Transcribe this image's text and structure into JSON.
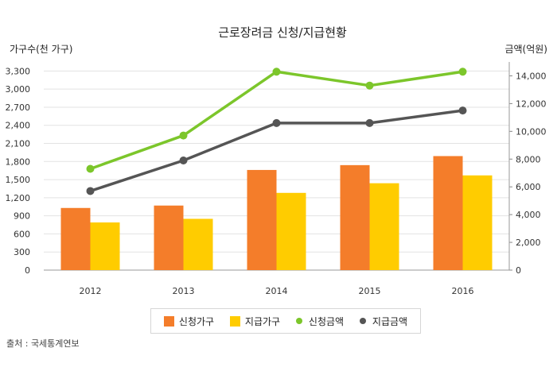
{
  "chart_data": {
    "type": "bar",
    "title": "근로장려금 신청/지급현황",
    "ylabel_left": "가구수(천 가구)",
    "ylabel_right": "금액(억원)",
    "categories": [
      "2012",
      "2013",
      "2014",
      "2015",
      "2016"
    ],
    "ylim_left": [
      0,
      3450
    ],
    "ylim_right": [
      0,
      15000
    ],
    "yticks_left": [
      "0",
      "300",
      "600",
      "900",
      "1,200",
      "1,500",
      "1,800",
      "2,100",
      "2,400",
      "2,700",
      "3,000",
      "3,300"
    ],
    "yticks_right": [
      "0",
      "2,000",
      "4,000",
      "6,000",
      "8,000",
      "10,000",
      "12,000",
      "14,000"
    ],
    "series": [
      {
        "name": "신청가구",
        "kind": "bar",
        "axis": "left",
        "color": "#f47d2a",
        "values": [
          1030,
          1070,
          1660,
          1740,
          1890
        ]
      },
      {
        "name": "지급가구",
        "kind": "bar",
        "axis": "left",
        "color": "#ffcc00",
        "values": [
          790,
          850,
          1280,
          1440,
          1570
        ]
      },
      {
        "name": "신청금액",
        "kind": "line",
        "axis": "right",
        "color": "#7cc62b",
        "values": [
          7300,
          9700,
          14300,
          13300,
          14300
        ]
      },
      {
        "name": "지급금액",
        "kind": "line",
        "axis": "right",
        "color": "#555555",
        "values": [
          5700,
          7900,
          10600,
          10600,
          11500
        ]
      }
    ],
    "grid": true,
    "legend": "bottom"
  },
  "source": "출처 : 국세통계연보"
}
